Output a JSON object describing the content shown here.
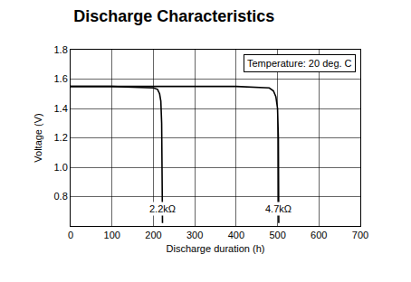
{
  "chart_data": {
    "type": "line",
    "title": "Discharge Characteristics",
    "x_label": "Discharge duration (h)",
    "y_label": "Voltage (V)",
    "annotations": [
      "Temperature: 20 deg. C"
    ],
    "series": [
      {
        "name": "2.2kΩ",
        "color": "#000000",
        "x": [
          0,
          100,
          200,
          210,
          215,
          218,
          220,
          221,
          222,
          222
        ],
        "values": [
          1.55,
          1.55,
          1.54,
          1.53,
          1.5,
          1.45,
          1.3,
          1.0,
          0.8,
          0.62
        ]
      },
      {
        "name": "4.7kΩ",
        "color": "#000000",
        "x": [
          0,
          100,
          200,
          300,
          400,
          480,
          490,
          496,
          500,
          502,
          503,
          503
        ],
        "values": [
          1.55,
          1.55,
          1.55,
          1.55,
          1.55,
          1.54,
          1.52,
          1.48,
          1.4,
          1.2,
          0.9,
          0.62
        ]
      }
    ],
    "xlim": [
      0,
      700
    ],
    "xticks": [
      0,
      100,
      200,
      300,
      400,
      500,
      600,
      700
    ],
    "ylim": [
      0.6,
      1.8
    ],
    "yticks": [
      0.8,
      {
        "value": 1,
        "label": "1.0"
      },
      1.2,
      1.4,
      1.6,
      1.8
    ],
    "grid": true
  }
}
